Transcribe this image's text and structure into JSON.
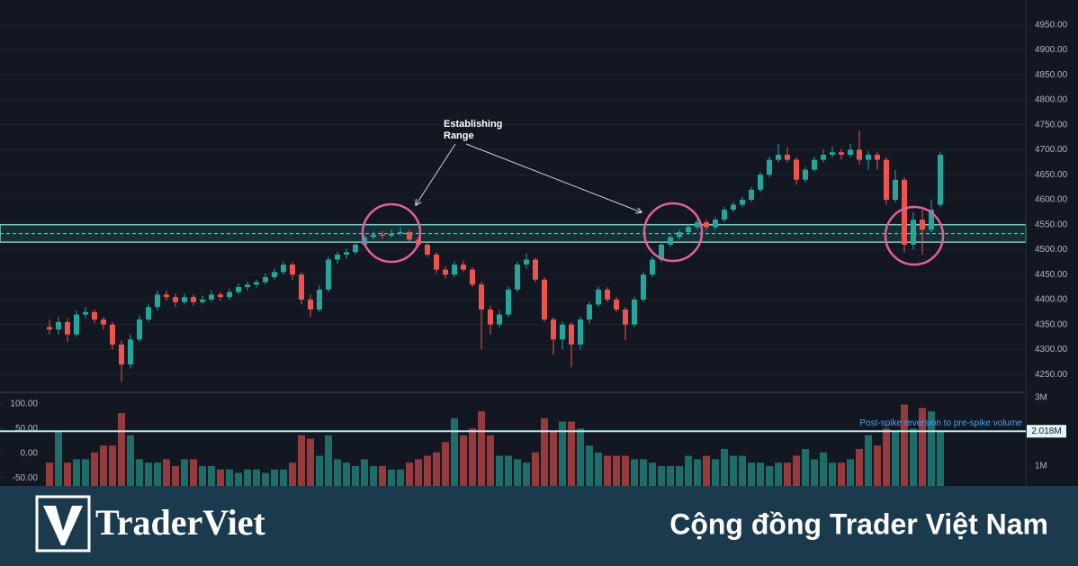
{
  "chart_data": {
    "type": "candlestick",
    "open": [
      4345,
      4340,
      4355,
      4330,
      4370,
      4375,
      4360,
      4350,
      4310,
      4270,
      4320,
      4360,
      4385,
      4410,
      4405,
      4395,
      4405,
      4395,
      4400,
      4410,
      4405,
      4415,
      4425,
      4430,
      4435,
      4445,
      4455,
      4470,
      4450,
      4400,
      4380,
      4420,
      4480,
      4490,
      4495,
      4510,
      4525,
      4530,
      4528,
      4532,
      4535,
      4520,
      4510,
      4490,
      4460,
      4450,
      4470,
      4460,
      4430,
      4380,
      4350,
      4370,
      4420,
      4470,
      4480,
      4440,
      4360,
      4320,
      4350,
      4310,
      4360,
      4390,
      4420,
      4400,
      4380,
      4350,
      4400,
      4450,
      4480,
      4510,
      4525,
      4535,
      4545,
      4555,
      4545,
      4560,
      4580,
      4590,
      4600,
      4620,
      4650,
      4680,
      4690,
      4680,
      4640,
      4660,
      4680,
      4690,
      4695,
      4690,
      4700,
      4680,
      4690,
      4680,
      4600,
      4640,
      4510,
      4560,
      4540,
      4590
    ],
    "high": [
      4360,
      4365,
      4362,
      4378,
      4385,
      4380,
      4365,
      4355,
      4318,
      4330,
      4368,
      4392,
      4418,
      4418,
      4412,
      4412,
      4410,
      4408,
      4418,
      4415,
      4422,
      4432,
      4436,
      4440,
      4452,
      4462,
      4476,
      4475,
      4455,
      4410,
      4428,
      4486,
      4496,
      4502,
      4515,
      4530,
      4536,
      4538,
      4540,
      4545,
      4540,
      4526,
      4515,
      4495,
      4466,
      4476,
      4478,
      4465,
      4436,
      4388,
      4378,
      4426,
      4476,
      4492,
      4484,
      4445,
      4365,
      4356,
      4355,
      4366,
      4396,
      4426,
      4425,
      4405,
      4385,
      4406,
      4456,
      4486,
      4516,
      4530,
      4540,
      4550,
      4562,
      4560,
      4566,
      4586,
      4596,
      4606,
      4626,
      4656,
      4686,
      4712,
      4705,
      4685,
      4666,
      4686,
      4700,
      4706,
      4702,
      4712,
      4738,
      4698,
      4695,
      4685,
      4660,
      4645,
      4575,
      4580,
      4600,
      4696
    ],
    "low": [
      4330,
      4330,
      4315,
      4325,
      4362,
      4352,
      4340,
      4300,
      4235,
      4262,
      4315,
      4355,
      4378,
      4398,
      4385,
      4390,
      4388,
      4390,
      4395,
      4398,
      4400,
      4410,
      4418,
      4424,
      4430,
      4440,
      4450,
      4440,
      4390,
      4365,
      4375,
      4415,
      4472,
      4482,
      4490,
      4505,
      4520,
      4522,
      4524,
      4528,
      4515,
      4505,
      4485,
      4452,
      4442,
      4445,
      4455,
      4425,
      4300,
      4330,
      4344,
      4365,
      4415,
      4462,
      4435,
      4355,
      4290,
      4300,
      4265,
      4300,
      4352,
      4385,
      4395,
      4375,
      4318,
      4345,
      4395,
      4445,
      4475,
      4505,
      4520,
      4530,
      4540,
      4538,
      4540,
      4555,
      4575,
      4585,
      4595,
      4615,
      4645,
      4675,
      4675,
      4630,
      4635,
      4655,
      4675,
      4685,
      4680,
      4685,
      4670,
      4660,
      4660,
      4590,
      4595,
      4495,
      4500,
      4490,
      4535,
      4585
    ],
    "close": [
      4340,
      4355,
      4330,
      4370,
      4375,
      4360,
      4350,
      4310,
      4270,
      4320,
      4360,
      4385,
      4410,
      4405,
      4395,
      4405,
      4395,
      4400,
      4410,
      4405,
      4415,
      4425,
      4430,
      4435,
      4445,
      4455,
      4470,
      4450,
      4400,
      4380,
      4420,
      4480,
      4490,
      4495,
      4510,
      4525,
      4530,
      4528,
      4532,
      4535,
      4520,
      4510,
      4490,
      4460,
      4450,
      4470,
      4460,
      4430,
      4380,
      4350,
      4370,
      4420,
      4470,
      4480,
      4440,
      4360,
      4320,
      4350,
      4310,
      4360,
      4390,
      4420,
      4400,
      4380,
      4350,
      4400,
      4450,
      4480,
      4510,
      4525,
      4535,
      4545,
      4555,
      4545,
      4560,
      4580,
      4590,
      4600,
      4620,
      4650,
      4680,
      4690,
      4680,
      4640,
      4660,
      4680,
      4690,
      4695,
      4690,
      4700,
      4680,
      4690,
      4680,
      4600,
      4640,
      4510,
      4560,
      4540,
      4580,
      4690
    ],
    "up_color": "#26a69a",
    "down_color": "#ef5350",
    "ylim": [
      4216,
      5000
    ],
    "yticks": [
      {
        "value": 4250,
        "label": "4250.00"
      },
      {
        "value": 4300,
        "label": "4300.00"
      },
      {
        "value": 4350,
        "label": "4350.00"
      },
      {
        "value": 4400,
        "label": "4400.00"
      },
      {
        "value": 4450,
        "label": "4450.00"
      },
      {
        "value": 4500,
        "label": "4500.00"
      },
      {
        "value": 4550,
        "label": "4550.00"
      },
      {
        "value": 4600,
        "label": "4600.00"
      },
      {
        "value": 4650,
        "label": "4650.00"
      },
      {
        "value": 4700,
        "label": "4700.00"
      },
      {
        "value": 4750,
        "label": "4750.00"
      },
      {
        "value": 4800,
        "label": "4800.00"
      },
      {
        "value": 4850,
        "label": "4850.00"
      },
      {
        "value": 4900,
        "label": "4900.00"
      },
      {
        "value": 4950,
        "label": "4950.00"
      }
    ],
    "range_band": [
      4515,
      4550
    ],
    "range_mid": 4532,
    "annotation_lines": [
      "Establishing",
      "Range"
    ],
    "volume": {
      "values": [
        1.1,
        2.0,
        1.1,
        1.2,
        1.2,
        1.4,
        1.6,
        1.6,
        2.55,
        1.9,
        1.2,
        1.1,
        1.1,
        1.2,
        1.0,
        1.2,
        1.2,
        1.0,
        1.0,
        0.9,
        0.9,
        0.8,
        0.9,
        0.9,
        0.8,
        0.9,
        0.9,
        1.1,
        1.9,
        1.8,
        1.3,
        1.9,
        1.2,
        1.1,
        1.0,
        1.2,
        1.0,
        1.0,
        0.9,
        0.9,
        1.1,
        1.2,
        1.3,
        1.4,
        1.7,
        2.4,
        1.9,
        2.1,
        2.6,
        1.9,
        1.3,
        1.3,
        1.2,
        1.1,
        1.4,
        2.4,
        2.0,
        2.3,
        2.3,
        2.1,
        1.6,
        1.4,
        1.3,
        1.3,
        1.3,
        1.2,
        1.2,
        1.1,
        1.0,
        1.0,
        1.0,
        1.3,
        1.2,
        1.3,
        1.2,
        1.5,
        1.3,
        1.3,
        1.1,
        1.1,
        1.0,
        1.1,
        1.1,
        1.3,
        1.5,
        1.2,
        1.4,
        1.1,
        1.1,
        1.2,
        1.5,
        1.9,
        1.6,
        2.1,
        2.0,
        2.8,
        2.1,
        2.7,
        2.6,
        2.0
      ],
      "ylim": [
        0.42,
        3.13
      ],
      "yticks": [
        {
          "value": 1,
          "label": "1M"
        },
        {
          "value": 3,
          "label": "3M"
        }
      ],
      "level": {
        "value": 2.018,
        "label": "2.018M",
        "text": "Post-spike reversion to pre-spike volume"
      },
      "oscillator_ylim": [
        -66,
        122
      ],
      "oscillator_yticks": [
        {
          "value": 100,
          "label": "100.00"
        },
        {
          "value": 50,
          "label": "50.00"
        },
        {
          "value": 0,
          "label": "0.00"
        },
        {
          "value": -50,
          "label": "-50.00"
        }
      ]
    }
  },
  "footer": {
    "brand": "TraderViet",
    "tagline": "Cộng đồng Trader Việt Nam"
  }
}
